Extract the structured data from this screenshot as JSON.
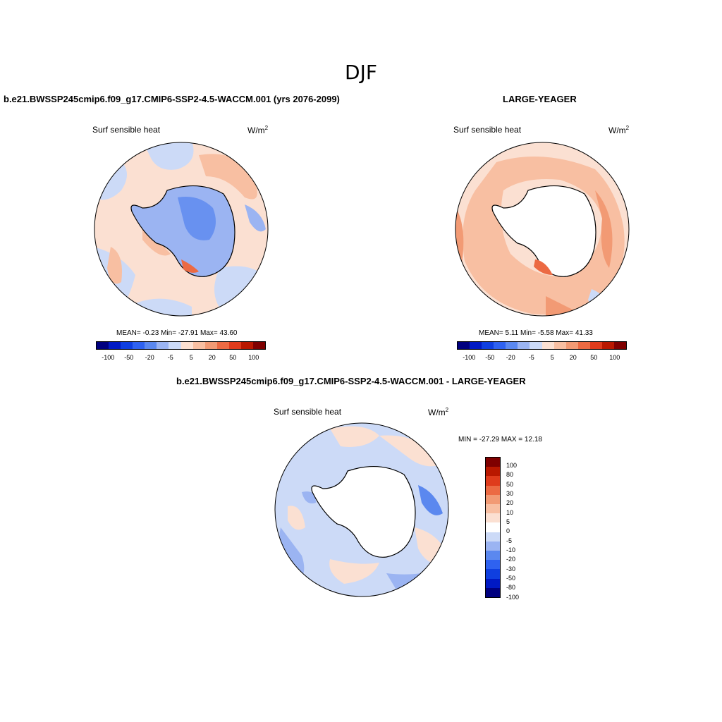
{
  "figure": {
    "title": "DJF"
  },
  "palette": [
    "#00007f",
    "#0019c4",
    "#0f3fe0",
    "#2f62f0",
    "#5b88ef",
    "#9bb4f2",
    "#ccdaf7",
    "#fbe0d2",
    "#f8bfa2",
    "#f29a74",
    "#ec6a43",
    "#df3b1c",
    "#b91800",
    "#7f0000"
  ],
  "diff_palette": [
    "#00007f",
    "#0019c4",
    "#0f3fe0",
    "#2f62f0",
    "#5b88ef",
    "#9bb4f2",
    "#ccdaf7",
    "#ffffff",
    "#fbe0d2",
    "#f8bfa2",
    "#f29a74",
    "#ec6a43",
    "#df3b1c",
    "#b91800",
    "#7f0000"
  ],
  "panels": {
    "model": {
      "title": "b.e21.BWSSP245cmip6.f09_g17.CMIP6-SSP2-4.5-WACCM.001 (yrs 2076-2099)",
      "variable": "Surf sensible heat",
      "units": "W/m",
      "units_exp": "2",
      "stats": "MEAN=  -0.23  Min= -27.91  Max=  43.60",
      "colorbar_labels": [
        "-100",
        "-50",
        "-20",
        "-5",
        "5",
        "20",
        "50",
        "100"
      ]
    },
    "obs": {
      "title": "LARGE-YEAGER",
      "variable": "Surf sensible heat",
      "units": "W/m",
      "units_exp": "2",
      "stats": "MEAN=   5.11  Min=  -5.58  Max=  41.33",
      "colorbar_labels": [
        "-100",
        "-50",
        "-20",
        "-5",
        "5",
        "20",
        "50",
        "100"
      ]
    },
    "diff": {
      "title": "b.e21.BWSSP245cmip6.f09_g17.CMIP6-SSP2-4.5-WACCM.001 - LARGE-YEAGER",
      "variable": "Surf sensible heat",
      "units": "W/m",
      "units_exp": "2",
      "stats": "MIN = -27.29 MAX =  12.18",
      "colorbar_labels": [
        "100",
        "80",
        "50",
        "30",
        "20",
        "10",
        "5",
        "0",
        "-5",
        "-10",
        "-20",
        "-30",
        "-50",
        "-80",
        "-100"
      ]
    }
  }
}
